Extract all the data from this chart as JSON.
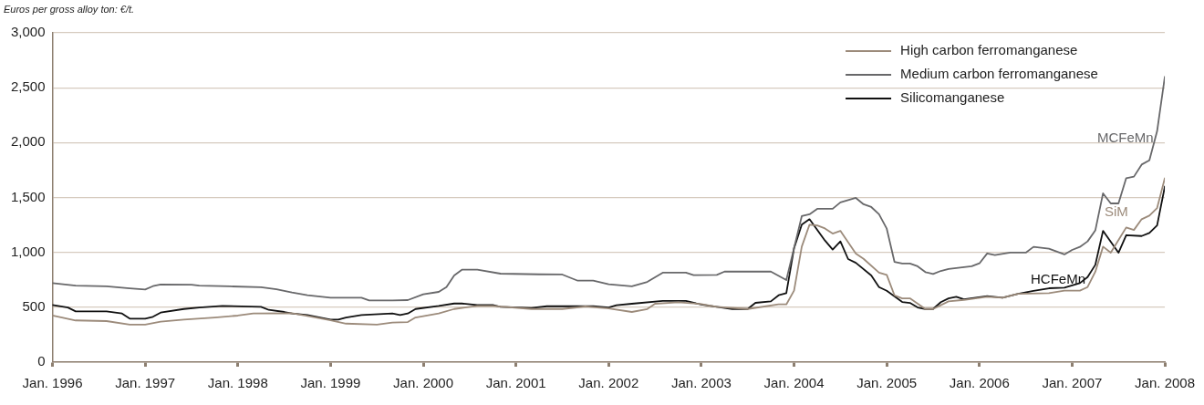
{
  "chart_data": {
    "type": "line",
    "ylabel": "Euros per gross alloy ton: €/t.",
    "xlim": [
      "1996-01",
      "2008-01"
    ],
    "xticks": [
      {
        "value": "1996-01",
        "label": "Jan. 1996"
      },
      {
        "value": "1997-01",
        "label": "Jan. 1997"
      },
      {
        "value": "1998-01",
        "label": "Jan. 1998"
      },
      {
        "value": "1999-01",
        "label": "Jan. 1999"
      },
      {
        "value": "2000-01",
        "label": "Jan. 2000"
      },
      {
        "value": "2001-01",
        "label": "Jan. 2001"
      },
      {
        "value": "2002-01",
        "label": "Jan. 2002"
      },
      {
        "value": "2003-01",
        "label": "Jan. 2003"
      },
      {
        "value": "2004-01",
        "label": "Jan. 2004"
      },
      {
        "value": "2005-01",
        "label": "Jan. 2005"
      },
      {
        "value": "2006-01",
        "label": "Jan. 2006"
      },
      {
        "value": "2007-01",
        "label": "Jan. 2007"
      },
      {
        "value": "2008-01",
        "label": "Jan. 2008"
      }
    ],
    "ylim": [
      0,
      3000
    ],
    "yticks": [
      {
        "value": 0,
        "label": "0"
      },
      {
        "value": 500,
        "label": "500"
      },
      {
        "value": 1000,
        "label": "1,000"
      },
      {
        "value": 1500,
        "label": "1,500"
      },
      {
        "value": 2000,
        "label": "2,000"
      },
      {
        "value": 2500,
        "label": "2,500"
      },
      {
        "value": 3000,
        "label": "3,000"
      }
    ],
    "grid": "y",
    "legend": "top right",
    "marker": "none",
    "line_style": "solid",
    "series": [
      {
        "name": "High carbon ferromanganese",
        "color": "#9c8b7b",
        "x": [
          "1996-01",
          "1996-04",
          "1996-08",
          "1996-11",
          "1997-01",
          "1997-03",
          "1997-06",
          "1997-10",
          "1998-01",
          "1998-03",
          "1998-08",
          "1998-10",
          "1999-01",
          "1999-03",
          "1999-07",
          "1999-09",
          "1999-11",
          "1999-12",
          "2000-03",
          "2000-05",
          "2000-08",
          "2000-10",
          "2001-03",
          "2001-07",
          "2001-10",
          "2002-01",
          "2002-04",
          "2002-06",
          "2002-07",
          "2002-10",
          "2003-01",
          "2003-03",
          "2003-07",
          "2003-11",
          "2003-12",
          "2004-01",
          "2004-02",
          "2004-03",
          "2004-04",
          "2004-05",
          "2004-06",
          "2004-07",
          "2004-09",
          "2004-10",
          "2004-12",
          "2005-01",
          "2005-02",
          "2005-03",
          "2005-04",
          "2005-06",
          "2005-07",
          "2005-09",
          "2005-11",
          "2006-02",
          "2006-04",
          "2006-06",
          "2006-10",
          "2006-12",
          "2007-02",
          "2007-03",
          "2007-04",
          "2007-05",
          "2007-06",
          "2007-08",
          "2007-09",
          "2007-10",
          "2007-11",
          "2007-12",
          "2008-01"
        ],
        "values": [
          424,
          380,
          374,
          341,
          341,
          368,
          388,
          407,
          424,
          443,
          446,
          421,
          382,
          351,
          341,
          360,
          365,
          407,
          443,
          484,
          512,
          512,
          484,
          484,
          507,
          490,
          457,
          484,
          532,
          546,
          529,
          504,
          484,
          526,
          526,
          651,
          1052,
          1252,
          1246,
          1218,
          1171,
          1196,
          988,
          941,
          816,
          795,
          609,
          581,
          581,
          484,
          484,
          554,
          567,
          595,
          587,
          623,
          629,
          651,
          651,
          684,
          823,
          1052,
          997,
          1227,
          1204,
          1302,
          1335,
          1404,
          1676
        ]
      },
      {
        "name": "Medium carbon ferromanganese",
        "color": "#68686a",
        "x": [
          "1996-01",
          "1996-04",
          "1996-08",
          "1996-11",
          "1997-01",
          "1997-02",
          "1997-03",
          "1997-07",
          "1997-08",
          "1997-12",
          "1998-04",
          "1998-06",
          "1998-08",
          "1998-10",
          "1999-01",
          "1999-05",
          "1999-06",
          "1999-09",
          "1999-11",
          "2000-01",
          "2000-03",
          "2000-04",
          "2000-05",
          "2000-06",
          "2000-08",
          "2000-11",
          "2001-04",
          "2001-07",
          "2001-09",
          "2001-11",
          "2002-01",
          "2002-04",
          "2002-06",
          "2002-08",
          "2002-11",
          "2002-12",
          "2003-03",
          "2003-04",
          "2003-10",
          "2003-12",
          "2004-02",
          "2004-03",
          "2004-04",
          "2004-06",
          "2004-07",
          "2004-09",
          "2004-10",
          "2004-11",
          "2004-12",
          "2005-01",
          "2005-02",
          "2005-03",
          "2005-04",
          "2005-05",
          "2005-06",
          "2005-07",
          "2005-08",
          "2005-09",
          "2005-12",
          "2006-01",
          "2006-02",
          "2006-03",
          "2006-05",
          "2006-07",
          "2006-08",
          "2006-10",
          "2006-12",
          "2007-01",
          "2007-02",
          "2007-03",
          "2007-04",
          "2007-05",
          "2007-06",
          "2007-07",
          "2007-08",
          "2007-09",
          "2007-10",
          "2007-11",
          "2007-12",
          "2008-01"
        ],
        "values": [
          720,
          697,
          690,
          672,
          662,
          692,
          708,
          705,
          697,
          690,
          683,
          664,
          634,
          609,
          587,
          587,
          562,
          562,
          565,
          618,
          640,
          684,
          790,
          842,
          842,
          806,
          800,
          798,
          742,
          742,
          709,
          690,
          731,
          815,
          815,
          792,
          795,
          825,
          825,
          748,
          1330,
          1347,
          1397,
          1397,
          1455,
          1496,
          1438,
          1413,
          1347,
          1216,
          914,
          898,
          898,
          873,
          820,
          803,
          831,
          848,
          873,
          900,
          990,
          976,
          998,
          998,
          1050,
          1033,
          981,
          1022,
          1050,
          1100,
          1200,
          1538,
          1446,
          1446,
          1676,
          1690,
          1800,
          1838,
          2104,
          2600
        ]
      },
      {
        "name": "Silicomanganese",
        "color": "#111111",
        "x": [
          "1996-01",
          "1996-03",
          "1996-04",
          "1996-08",
          "1996-10",
          "1996-11",
          "1997-01",
          "1997-02",
          "1997-03",
          "1997-06",
          "1997-08",
          "1997-11",
          "1998-04",
          "1998-05",
          "1998-07",
          "1998-08",
          "1998-10",
          "1999-01",
          "1999-02",
          "1999-03",
          "1999-05",
          "1999-09",
          "1999-10",
          "1999-11",
          "1999-12",
          "2000-03",
          "2000-05",
          "2000-06",
          "2000-08",
          "2000-10",
          "2000-11",
          "2001-03",
          "2001-05",
          "2001-11",
          "2002-01",
          "2002-02",
          "2002-04",
          "2002-08",
          "2002-11",
          "2003-01",
          "2003-03",
          "2003-05",
          "2003-07",
          "2003-08",
          "2003-10",
          "2003-11",
          "2003-12",
          "2004-01",
          "2004-02",
          "2004-03",
          "2004-05",
          "2004-06",
          "2004-07",
          "2004-08",
          "2004-09",
          "2004-11",
          "2004-12",
          "2005-01",
          "2005-03",
          "2005-04",
          "2005-05",
          "2005-06",
          "2005-07",
          "2005-08",
          "2005-09",
          "2005-10",
          "2005-11",
          "2006-02",
          "2006-04",
          "2006-06",
          "2006-08",
          "2006-10",
          "2006-12",
          "2007-02",
          "2007-03",
          "2007-04",
          "2007-05",
          "2007-07",
          "2007-08",
          "2007-10",
          "2007-11",
          "2007-12",
          "2008-01"
        ],
        "values": [
          520,
          498,
          462,
          462,
          443,
          396,
          396,
          413,
          451,
          484,
          498,
          512,
          504,
          476,
          457,
          443,
          429,
          388,
          388,
          407,
          429,
          443,
          429,
          443,
          484,
          512,
          534,
          534,
          521,
          521,
          504,
          493,
          509,
          509,
          498,
          518,
          532,
          557,
          557,
          524,
          504,
          484,
          484,
          540,
          554,
          609,
          629,
          1038,
          1252,
          1302,
          1108,
          1025,
          1100,
          939,
          905,
          789,
          684,
          650,
          548,
          540,
          498,
          484,
          484,
          546,
          581,
          595,
          573,
          601,
          587,
          623,
          650,
          673,
          679,
          720,
          775,
          886,
          1196,
          997,
          1157,
          1149,
          1177,
          1246,
          1600
        ]
      }
    ],
    "annotations": [
      "MCFeMn",
      "SiM",
      "HCFeMn"
    ]
  }
}
